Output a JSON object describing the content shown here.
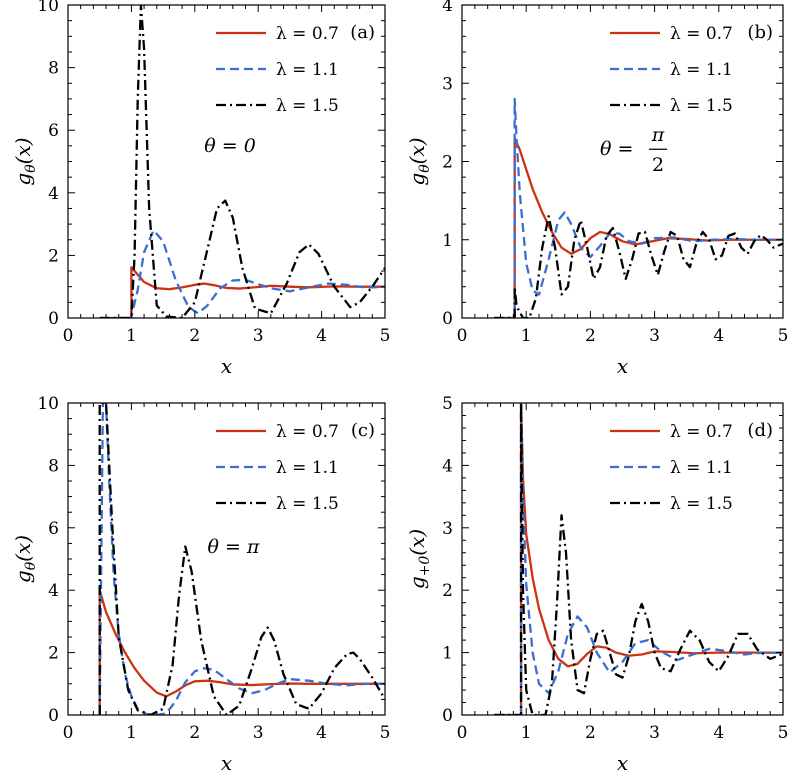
{
  "colors": {
    "red": "#cc3311",
    "blue": "#3a6fd1",
    "black": "#000000"
  },
  "chart_data": [
    {
      "type": "line",
      "panel_tag": "(a)",
      "annotation": "θ = 0",
      "xlabel": "x",
      "ylabel": "gθ(x)",
      "xlim": [
        0,
        5
      ],
      "ylim": [
        0,
        10
      ],
      "xticks": [
        0,
        1,
        2,
        3,
        4,
        5
      ],
      "yticks": [
        0,
        2,
        4,
        6,
        8,
        10
      ],
      "grid": false,
      "legend_position": "top-right",
      "series": [
        {
          "name": "λ = 0.7",
          "style": "solid",
          "color": "red",
          "x": [
            0.5,
            1.0,
            1.0,
            1.05,
            1.2,
            1.4,
            1.6,
            1.8,
            2.0,
            2.15,
            2.3,
            2.5,
            2.7,
            3.0,
            3.2,
            3.5,
            3.8,
            4.2,
            4.6,
            5.0
          ],
          "y": [
            0,
            0,
            1.62,
            1.5,
            1.15,
            0.95,
            0.92,
            0.98,
            1.06,
            1.1,
            1.05,
            0.96,
            0.94,
            0.99,
            1.03,
            1.0,
            0.98,
            1.01,
            1.0,
            1.0
          ]
        },
        {
          "name": "λ = 1.1",
          "style": "dashed",
          "color": "blue",
          "x": [
            0.5,
            1.0,
            1.0,
            1.1,
            1.2,
            1.35,
            1.5,
            1.7,
            1.9,
            2.05,
            2.2,
            2.4,
            2.6,
            2.8,
            3.0,
            3.2,
            3.5,
            3.8,
            4.1,
            4.4,
            4.7,
            5.0
          ],
          "y": [
            0,
            0,
            0.05,
            0.9,
            2.1,
            2.8,
            2.45,
            1.2,
            0.35,
            0.15,
            0.4,
            0.95,
            1.2,
            1.22,
            1.08,
            0.95,
            0.85,
            0.98,
            1.1,
            1.06,
            0.97,
            1.0
          ]
        },
        {
          "name": "λ = 1.5",
          "style": "dashdot",
          "color": "black",
          "x": [
            0.5,
            1.0,
            1.0,
            1.05,
            1.1,
            1.15,
            1.2,
            1.28,
            1.4,
            1.55,
            1.8,
            2.0,
            2.2,
            2.35,
            2.48,
            2.6,
            2.75,
            2.95,
            3.2,
            3.45,
            3.65,
            3.8,
            3.95,
            4.2,
            4.45,
            4.6,
            4.8,
            5.0
          ],
          "y": [
            0,
            0,
            0.05,
            2.0,
            7.0,
            10.0,
            8.6,
            3.5,
            0.4,
            0.05,
            0.0,
            0.5,
            2.2,
            3.5,
            3.75,
            3.2,
            1.6,
            0.3,
            0.15,
            1.1,
            2.1,
            2.35,
            2.05,
            1.0,
            0.35,
            0.5,
            1.0,
            1.6
          ]
        }
      ]
    },
    {
      "type": "line",
      "panel_tag": "(b)",
      "annotation_lhs": "θ =",
      "annotation_num": "π",
      "annotation_den": "2",
      "xlabel": "x",
      "ylabel": "gθ(x)",
      "xlim": [
        0,
        5
      ],
      "ylim": [
        0,
        4
      ],
      "xticks": [
        0,
        1,
        2,
        3,
        4,
        5
      ],
      "yticks": [
        0,
        1,
        2,
        3,
        4
      ],
      "grid": false,
      "legend_position": "top-right",
      "series": [
        {
          "name": "λ = 0.7",
          "style": "solid",
          "color": "red",
          "x": [
            0.5,
            0.82,
            0.82,
            0.9,
            1.0,
            1.1,
            1.25,
            1.4,
            1.55,
            1.7,
            1.85,
            2.0,
            2.15,
            2.3,
            2.5,
            2.7,
            2.9,
            3.2,
            3.5,
            3.8,
            4.2,
            4.6,
            5.0
          ],
          "y": [
            0,
            0,
            2.3,
            2.15,
            1.9,
            1.65,
            1.35,
            1.1,
            0.9,
            0.82,
            0.88,
            1.02,
            1.1,
            1.07,
            0.98,
            0.94,
            0.97,
            1.02,
            1.01,
            0.99,
            1.0,
            1.0,
            1.0
          ]
        },
        {
          "name": "λ = 1.1",
          "style": "dashed",
          "color": "blue",
          "x": [
            0.5,
            0.82,
            0.82,
            0.85,
            0.9,
            1.0,
            1.1,
            1.2,
            1.35,
            1.5,
            1.6,
            1.7,
            1.85,
            2.0,
            2.15,
            2.3,
            2.45,
            2.6,
            2.8,
            3.0,
            3.3,
            3.6,
            3.9,
            4.2,
            4.6,
            5.0
          ],
          "y": [
            0,
            0,
            2.8,
            2.3,
            1.6,
            0.7,
            0.35,
            0.3,
            0.75,
            1.25,
            1.35,
            1.2,
            0.9,
            0.78,
            0.92,
            1.08,
            1.08,
            0.98,
            0.95,
            1.02,
            1.03,
            0.98,
            1.0,
            1.01,
            1.0,
            1.0
          ]
        },
        {
          "name": "λ = 1.5",
          "style": "dashdot",
          "color": "black",
          "x": [
            0.5,
            0.82,
            0.82,
            0.85,
            0.95,
            1.05,
            1.15,
            1.25,
            1.35,
            1.45,
            1.55,
            1.65,
            1.75,
            1.85,
            1.95,
            2.05,
            2.15,
            2.25,
            2.35,
            2.45,
            2.55,
            2.65,
            2.75,
            2.85,
            2.95,
            3.05,
            3.15,
            3.25,
            3.35,
            3.45,
            3.55,
            3.65,
            3.75,
            3.85,
            3.95,
            4.05,
            4.15,
            4.25,
            4.35,
            4.45,
            4.55,
            4.65,
            4.75,
            4.85,
            5.0
          ],
          "y": [
            0,
            0,
            0.4,
            0.15,
            0.0,
            0.0,
            0.25,
            0.9,
            1.3,
            0.9,
            0.3,
            0.4,
            1.0,
            1.25,
            0.9,
            0.5,
            0.65,
            1.05,
            1.15,
            0.85,
            0.5,
            0.75,
            1.08,
            1.1,
            0.8,
            0.55,
            0.85,
            1.1,
            1.05,
            0.75,
            0.65,
            0.95,
            1.1,
            1.0,
            0.75,
            0.8,
            1.05,
            1.08,
            0.9,
            0.82,
            0.98,
            1.06,
            1.0,
            0.9,
            0.95
          ]
        }
      ]
    },
    {
      "type": "line",
      "panel_tag": "(c)",
      "annotation": "θ = π",
      "xlabel": "x",
      "ylabel": "gθ(x)",
      "xlim": [
        0,
        5
      ],
      "ylim": [
        0,
        10
      ],
      "xticks": [
        0,
        1,
        2,
        3,
        4,
        5
      ],
      "yticks": [
        0,
        2,
        4,
        6,
        8,
        10
      ],
      "grid": false,
      "legend_position": "top-right",
      "series": [
        {
          "name": "λ = 0.7",
          "style": "solid",
          "color": "red",
          "x": [
            0.5,
            0.5,
            0.6,
            0.75,
            0.9,
            1.05,
            1.2,
            1.4,
            1.55,
            1.7,
            1.85,
            2.0,
            2.2,
            2.4,
            2.6,
            2.9,
            3.2,
            3.5,
            3.8,
            4.2,
            4.6,
            5.0
          ],
          "y": [
            0,
            4.0,
            3.3,
            2.6,
            2.0,
            1.5,
            1.1,
            0.72,
            0.6,
            0.75,
            0.95,
            1.08,
            1.1,
            1.05,
            0.98,
            0.96,
            0.99,
            1.01,
            1.0,
            1.0,
            1.0,
            1.0
          ]
        },
        {
          "name": "λ = 1.1",
          "style": "dashed",
          "color": "blue",
          "x": [
            0.5,
            0.55,
            0.6,
            0.65,
            0.72,
            0.8,
            0.9,
            1.0,
            1.1,
            1.25,
            1.4,
            1.55,
            1.7,
            1.85,
            2.0,
            2.15,
            2.3,
            2.5,
            2.7,
            2.9,
            3.1,
            3.3,
            3.5,
            3.8,
            4.1,
            4.4,
            4.7,
            5.0
          ],
          "y": [
            0,
            10.0,
            10.0,
            7.5,
            4.5,
            2.6,
            1.3,
            0.6,
            0.2,
            0.02,
            0.0,
            0.05,
            0.45,
            1.05,
            1.4,
            1.5,
            1.45,
            1.15,
            0.85,
            0.7,
            0.8,
            1.0,
            1.15,
            1.1,
            1.0,
            0.95,
            1.0,
            1.0
          ]
        },
        {
          "name": "λ = 1.5",
          "style": "dashdot",
          "color": "black",
          "x": [
            0.5,
            0.5,
            0.6,
            0.7,
            0.8,
            0.95,
            1.1,
            1.3,
            1.5,
            1.65,
            1.75,
            1.85,
            1.95,
            2.1,
            2.3,
            2.5,
            2.7,
            2.9,
            3.05,
            3.15,
            3.25,
            3.4,
            3.6,
            3.8,
            4.0,
            4.2,
            4.4,
            4.5,
            4.6,
            4.8,
            5.0
          ],
          "y": [
            0,
            10.0,
            10.0,
            6.0,
            2.5,
            0.8,
            0.15,
            0.0,
            0.2,
            1.6,
            3.8,
            5.4,
            4.6,
            2.4,
            0.6,
            0.0,
            0.3,
            1.5,
            2.5,
            2.8,
            2.4,
            1.3,
            0.35,
            0.2,
            0.7,
            1.5,
            1.95,
            2.0,
            1.8,
            1.2,
            0.5
          ]
        }
      ]
    },
    {
      "type": "line",
      "panel_tag": "(d)",
      "xlabel": "x",
      "ylabel": "g+0(x)",
      "xlim": [
        0,
        5
      ],
      "ylim": [
        0,
        5
      ],
      "xticks": [
        0,
        1,
        2,
        3,
        4,
        5
      ],
      "yticks": [
        0,
        1,
        2,
        3,
        4,
        5
      ],
      "grid": false,
      "legend_position": "top-right",
      "series": [
        {
          "name": "λ = 0.7",
          "style": "solid",
          "color": "red",
          "x": [
            0.5,
            0.92,
            0.92,
            0.95,
            1.0,
            1.1,
            1.2,
            1.35,
            1.5,
            1.65,
            1.8,
            1.95,
            2.1,
            2.25,
            2.4,
            2.6,
            2.8,
            3.0,
            3.3,
            3.6,
            4.0,
            4.5,
            5.0
          ],
          "y": [
            0,
            0,
            5.0,
            3.8,
            2.9,
            2.2,
            1.7,
            1.2,
            0.9,
            0.78,
            0.82,
            0.98,
            1.1,
            1.08,
            1.0,
            0.95,
            0.97,
            1.02,
            1.01,
            0.99,
            1.0,
            1.0,
            1.0
          ]
        },
        {
          "name": "λ = 1.1",
          "style": "dashed",
          "color": "blue",
          "x": [
            0.5,
            0.92,
            0.92,
            0.95,
            1.0,
            1.1,
            1.2,
            1.35,
            1.5,
            1.65,
            1.8,
            1.95,
            2.1,
            2.3,
            2.5,
            2.7,
            2.9,
            3.1,
            3.35,
            3.6,
            3.85,
            4.1,
            4.4,
            4.7,
            5.0
          ],
          "y": [
            0,
            0,
            5.0,
            3.5,
            2.1,
            1.0,
            0.5,
            0.35,
            0.7,
            1.3,
            1.58,
            1.4,
            1.0,
            0.68,
            0.85,
            1.15,
            1.2,
            1.02,
            0.88,
            0.97,
            1.06,
            1.03,
            0.97,
            1.0,
            1.0
          ]
        },
        {
          "name": "λ = 1.5",
          "style": "dashdot",
          "color": "black",
          "x": [
            0.5,
            0.92,
            0.92,
            0.95,
            1.0,
            1.1,
            1.2,
            1.3,
            1.4,
            1.48,
            1.55,
            1.62,
            1.7,
            1.8,
            1.9,
            2.0,
            2.1,
            2.2,
            2.3,
            2.4,
            2.5,
            2.6,
            2.7,
            2.8,
            2.9,
            3.0,
            3.1,
            3.25,
            3.4,
            3.55,
            3.7,
            3.85,
            4.0,
            4.15,
            4.3,
            4.45,
            4.6,
            4.8,
            5.0
          ],
          "y": [
            0,
            0,
            5.0,
            2.0,
            0.4,
            0.0,
            0.0,
            0.0,
            0.5,
            1.8,
            3.2,
            2.6,
            1.2,
            0.4,
            0.35,
            0.9,
            1.3,
            1.35,
            1.0,
            0.65,
            0.6,
            0.95,
            1.5,
            1.78,
            1.5,
            1.0,
            0.75,
            0.7,
            1.05,
            1.35,
            1.2,
            0.85,
            0.7,
            0.95,
            1.3,
            1.3,
            1.05,
            0.9,
            0.98
          ]
        }
      ]
    }
  ]
}
